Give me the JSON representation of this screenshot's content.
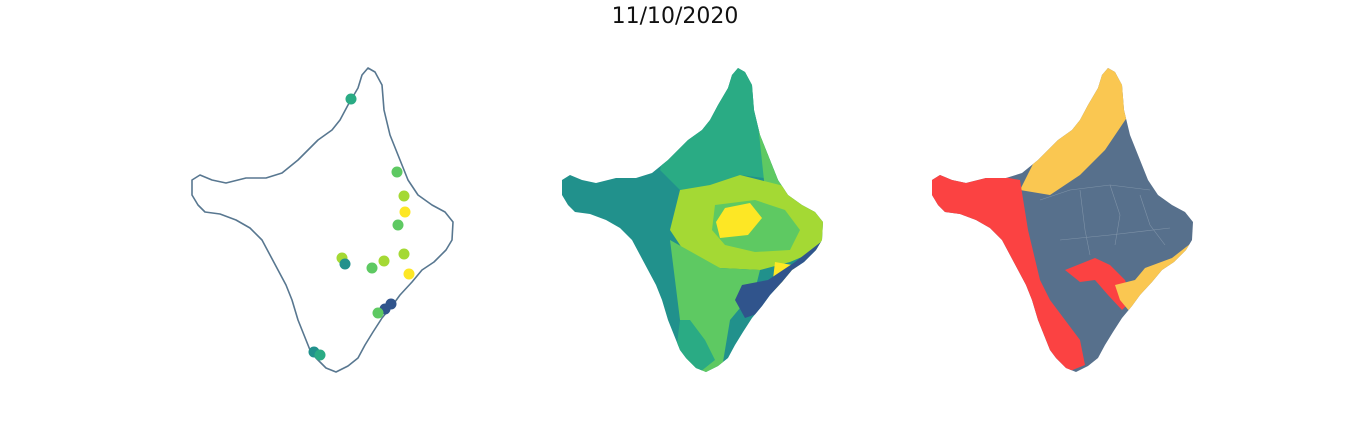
{
  "title": "11/10/2020",
  "colors": {
    "outline": "#587790",
    "viridis": [
      "#30548c",
      "#21918c",
      "#2aab84",
      "#5ec962",
      "#a4d934",
      "#fde725"
    ],
    "class_red": "#fb4242",
    "class_slate": "#57708c",
    "class_yellow": "#fac751"
  },
  "panels": [
    {
      "name": "point-map",
      "type": "scatter-on-outline"
    },
    {
      "name": "choropleth-map",
      "type": "choropleth"
    },
    {
      "name": "classified-map",
      "type": "categorical-choropleth"
    }
  ]
}
